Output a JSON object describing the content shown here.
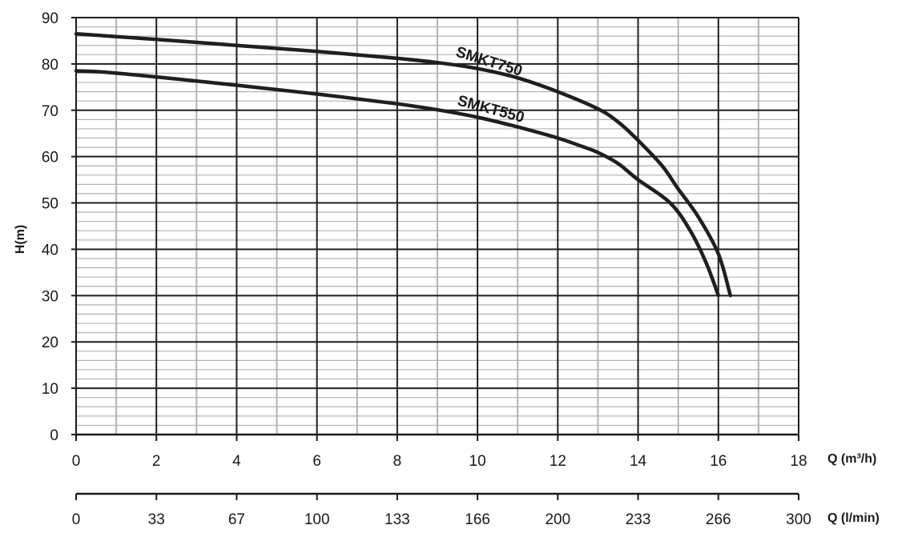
{
  "chart_data": {
    "type": "line",
    "ylabel": "H(m)",
    "xlabel": "Q (m³/h)",
    "x2label": "Q (l/min)",
    "xlim": [
      0,
      18
    ],
    "ylim": [
      0,
      90
    ],
    "x_ticks": [
      "0",
      "2",
      "4",
      "6",
      "8",
      "10",
      "12",
      "14",
      "16",
      "18"
    ],
    "x2_ticks": [
      "0",
      "33",
      "67",
      "100",
      "133",
      "166",
      "200",
      "233",
      "266",
      "300"
    ],
    "y_ticks": [
      "0",
      "10",
      "20",
      "30",
      "40",
      "50",
      "60",
      "70",
      "80",
      "90"
    ],
    "grid": true,
    "series": [
      {
        "name": "SMKT750",
        "x": [
          0,
          2,
          4,
          6,
          8,
          9,
          10,
          11,
          12,
          13,
          13.5,
          14,
          14.6,
          15,
          15.5,
          16,
          16.3
        ],
        "y": [
          86.5,
          85.3,
          84,
          82.7,
          81.2,
          80.3,
          79,
          77,
          74,
          70.3,
          67.5,
          63.5,
          58,
          53,
          47,
          39,
          30
        ]
      },
      {
        "name": "SMKT550",
        "x": [
          0,
          0.6,
          2,
          4,
          6,
          8,
          9,
          10,
          11,
          12,
          12.6,
          13,
          13.5,
          14,
          14.8,
          15.3,
          15.7,
          16
        ],
        "y": [
          78.5,
          78.3,
          77.2,
          75.4,
          73.5,
          71.4,
          70.1,
          68.5,
          66.4,
          64,
          62.2,
          60.9,
          58.5,
          55,
          50,
          44,
          37,
          30
        ]
      }
    ]
  }
}
